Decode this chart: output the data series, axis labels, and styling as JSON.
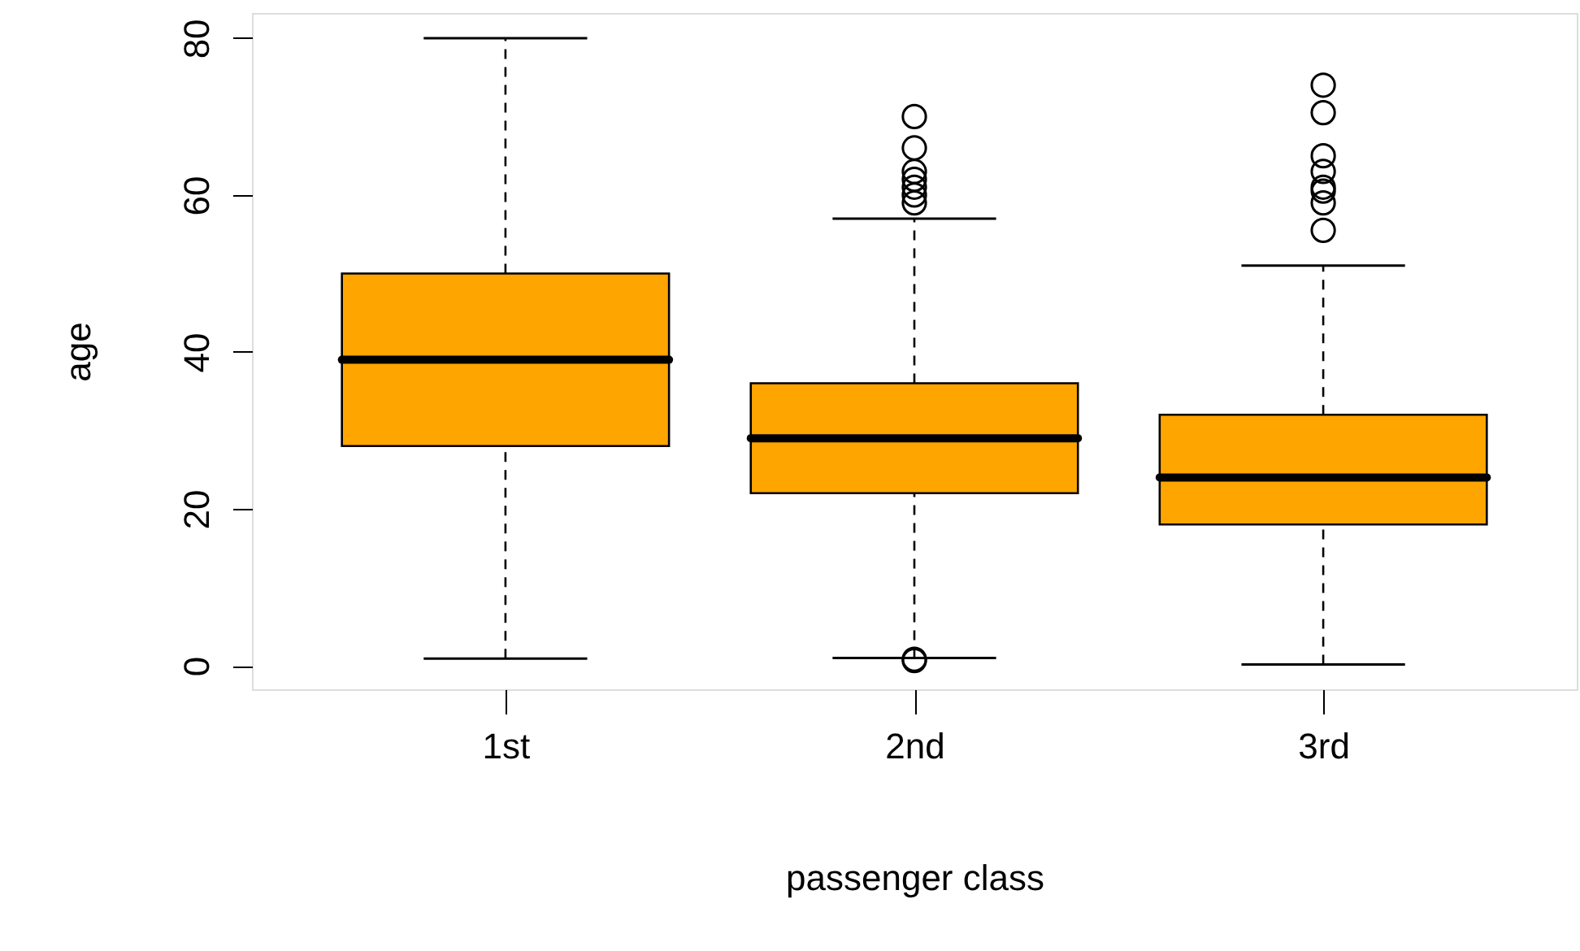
{
  "chart_data": {
    "type": "box",
    "xlabel": "passenger class",
    "ylabel": "age",
    "categories": [
      "1st",
      "2nd",
      "3rd"
    ],
    "ylim": [
      -3.0,
      83.2
    ],
    "yticks": [
      0,
      20,
      40,
      60,
      80
    ],
    "grid": false,
    "marker": "circle",
    "series": [
      {
        "color": "#ffa500",
        "boxes": [
          {
            "low": 0.92,
            "q1": 28,
            "median": 39,
            "q3": 50,
            "high": 80
          },
          {
            "low": 1,
            "q1": 22,
            "median": 29,
            "q3": 36,
            "high": 57,
            "outliers": [
              70,
              66,
              63,
              62,
              61,
              60,
              59,
              0.67,
              0.83
            ]
          },
          {
            "low": 0.17,
            "q1": 18,
            "median": 24,
            "q3": 32,
            "high": 51,
            "outliers": [
              74,
              70.5,
              65,
              63,
              61,
              60.5,
              59,
              55.5
            ]
          }
        ]
      }
    ]
  }
}
